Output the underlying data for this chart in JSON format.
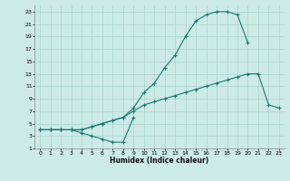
{
  "xlabel": "Humidex (Indice chaleur)",
  "background_color": "#cceae6",
  "grid_color": "#aad4ce",
  "line_color": "#1a7a6e",
  "xlim": [
    -0.5,
    23.5
  ],
  "ylim": [
    1,
    24
  ],
  "xticks": [
    0,
    1,
    2,
    3,
    4,
    5,
    6,
    7,
    8,
    9,
    10,
    11,
    12,
    13,
    14,
    15,
    16,
    17,
    18,
    19,
    20,
    21,
    22,
    23
  ],
  "yticks": [
    1,
    3,
    5,
    7,
    9,
    11,
    13,
    15,
    17,
    19,
    21,
    23
  ],
  "line1_x": [
    0,
    1,
    2,
    3,
    4,
    5,
    6,
    7,
    8,
    9,
    10,
    11,
    12,
    13,
    14,
    15,
    16,
    17,
    18,
    19,
    20,
    21,
    22,
    23
  ],
  "line1_y": [
    4,
    4,
    4,
    4,
    4,
    4.5,
    5,
    5.5,
    6,
    7,
    8,
    8.5,
    9,
    9.5,
    10,
    10.5,
    11,
    11.5,
    12,
    12.5,
    13,
    13,
    8,
    7.5
  ],
  "line2_x": [
    0,
    1,
    2,
    3,
    4,
    5,
    6,
    7,
    8,
    9,
    10,
    11,
    12,
    13,
    14,
    15,
    16,
    17,
    18,
    19,
    20
  ],
  "line2_y": [
    4,
    4,
    4,
    4,
    4,
    4.5,
    5,
    5.5,
    6,
    7.5,
    10,
    11.5,
    14,
    16,
    19,
    21.5,
    22.5,
    23,
    23,
    22.5,
    18
  ],
  "line3_x": [
    0,
    1,
    2,
    3,
    4,
    5,
    6,
    7,
    8,
    9
  ],
  "line3_y": [
    4,
    4,
    4,
    4,
    3.5,
    3,
    2.5,
    2,
    2,
    6
  ]
}
